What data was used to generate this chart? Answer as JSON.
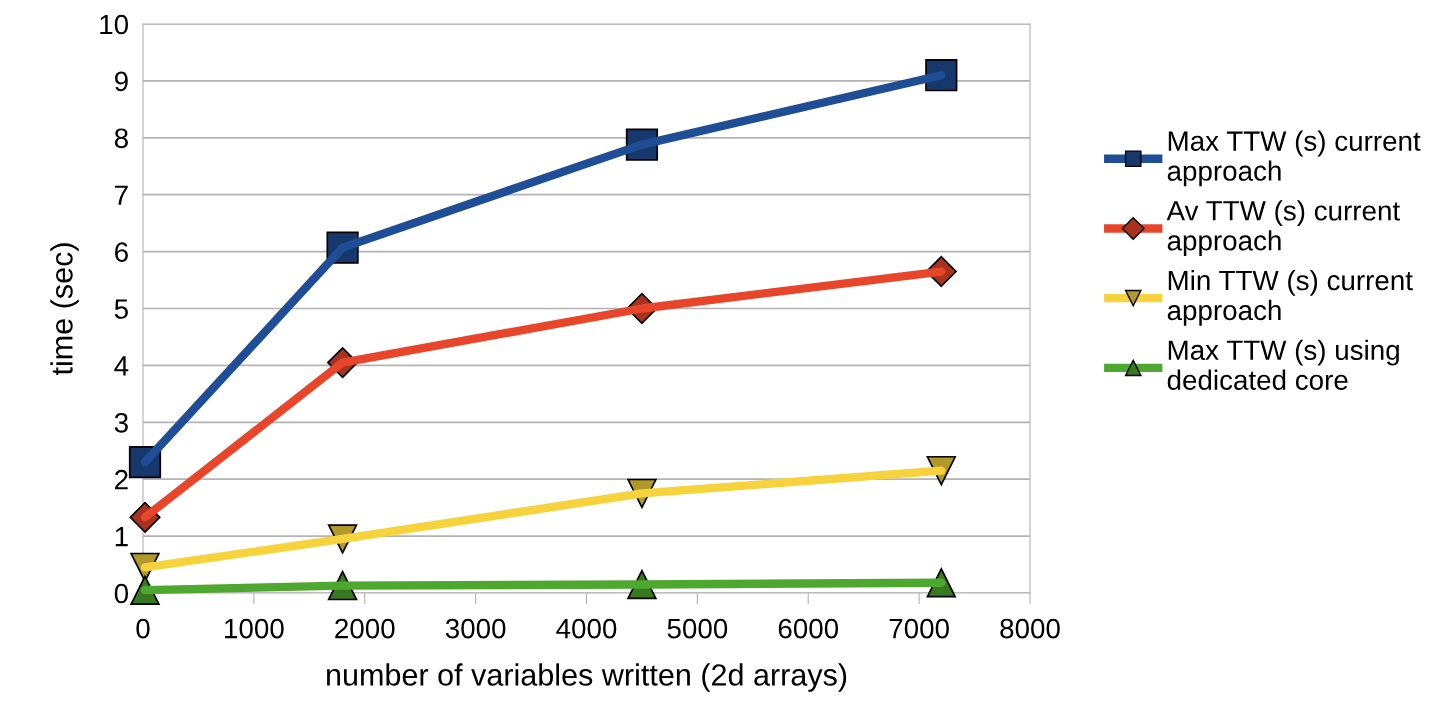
{
  "chart_data": {
    "type": "line",
    "xlabel": "number of variables written (2d arrays)",
    "ylabel": "time (sec)",
    "x": [
      18,
      1800,
      4500,
      7200
    ],
    "series": [
      {
        "name": "Max TTW (s) current approach",
        "color": "#1f4e96",
        "marker": "square",
        "values": [
          2.3,
          6.07,
          7.88,
          9.1
        ]
      },
      {
        "name": "Av TTW (s) current approach",
        "color": "#e8462a",
        "marker": "diamond",
        "values": [
          1.33,
          4.05,
          5.0,
          5.65
        ]
      },
      {
        "name": "Min TTW (s) current approach",
        "color": "#f6d33c",
        "marker": "triangle_down",
        "values": [
          0.45,
          0.95,
          1.75,
          2.15
        ]
      },
      {
        "name": "Max TTW (s) using dedicated core",
        "color": "#4ea72e",
        "marker": "triangle",
        "values": [
          0.05,
          0.13,
          0.15,
          0.18
        ]
      }
    ],
    "xlim": [
      0,
      8000
    ],
    "xticks": [
      0,
      1000,
      2000,
      3000,
      4000,
      5000,
      6000,
      7000,
      8000
    ],
    "ylim": [
      0,
      10
    ],
    "yticks": [
      0,
      1,
      2,
      3,
      4,
      5,
      6,
      7,
      8,
      9,
      10
    ],
    "grid": "y",
    "legend": "right",
    "line_style": "solid"
  }
}
